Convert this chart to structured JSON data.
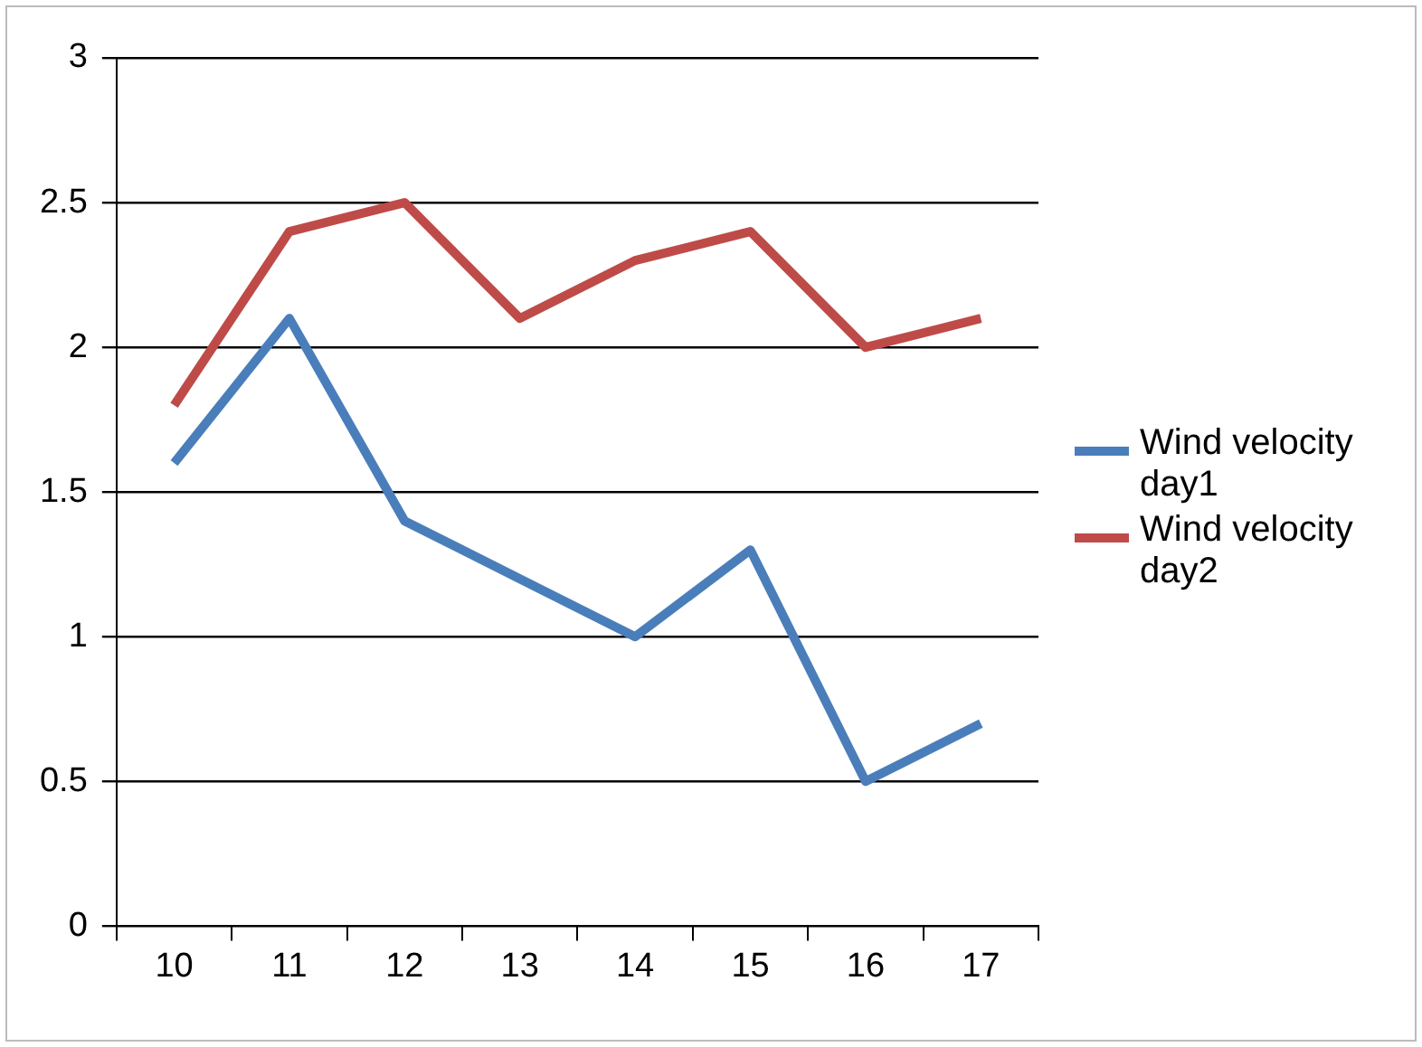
{
  "chart_data": {
    "type": "line",
    "categories": [
      "10",
      "11",
      "12",
      "13",
      "14",
      "15",
      "16",
      "17"
    ],
    "series": [
      {
        "name": "Wind velocity day1",
        "color": "#4a7ebb",
        "values": [
          1.6,
          2.1,
          1.4,
          1.2,
          1.0,
          1.3,
          0.5,
          0.7
        ]
      },
      {
        "name": "Wind velocity day2",
        "color": "#be4b48",
        "values": [
          1.8,
          2.4,
          2.5,
          2.1,
          2.3,
          2.4,
          2.0,
          2.1
        ]
      }
    ],
    "ylim": [
      0,
      3
    ],
    "yticks": [
      0,
      0.5,
      1,
      1.5,
      2,
      2.5,
      3
    ],
    "grid": "y",
    "legend": "right",
    "marker": "none",
    "line_style": "solid"
  }
}
